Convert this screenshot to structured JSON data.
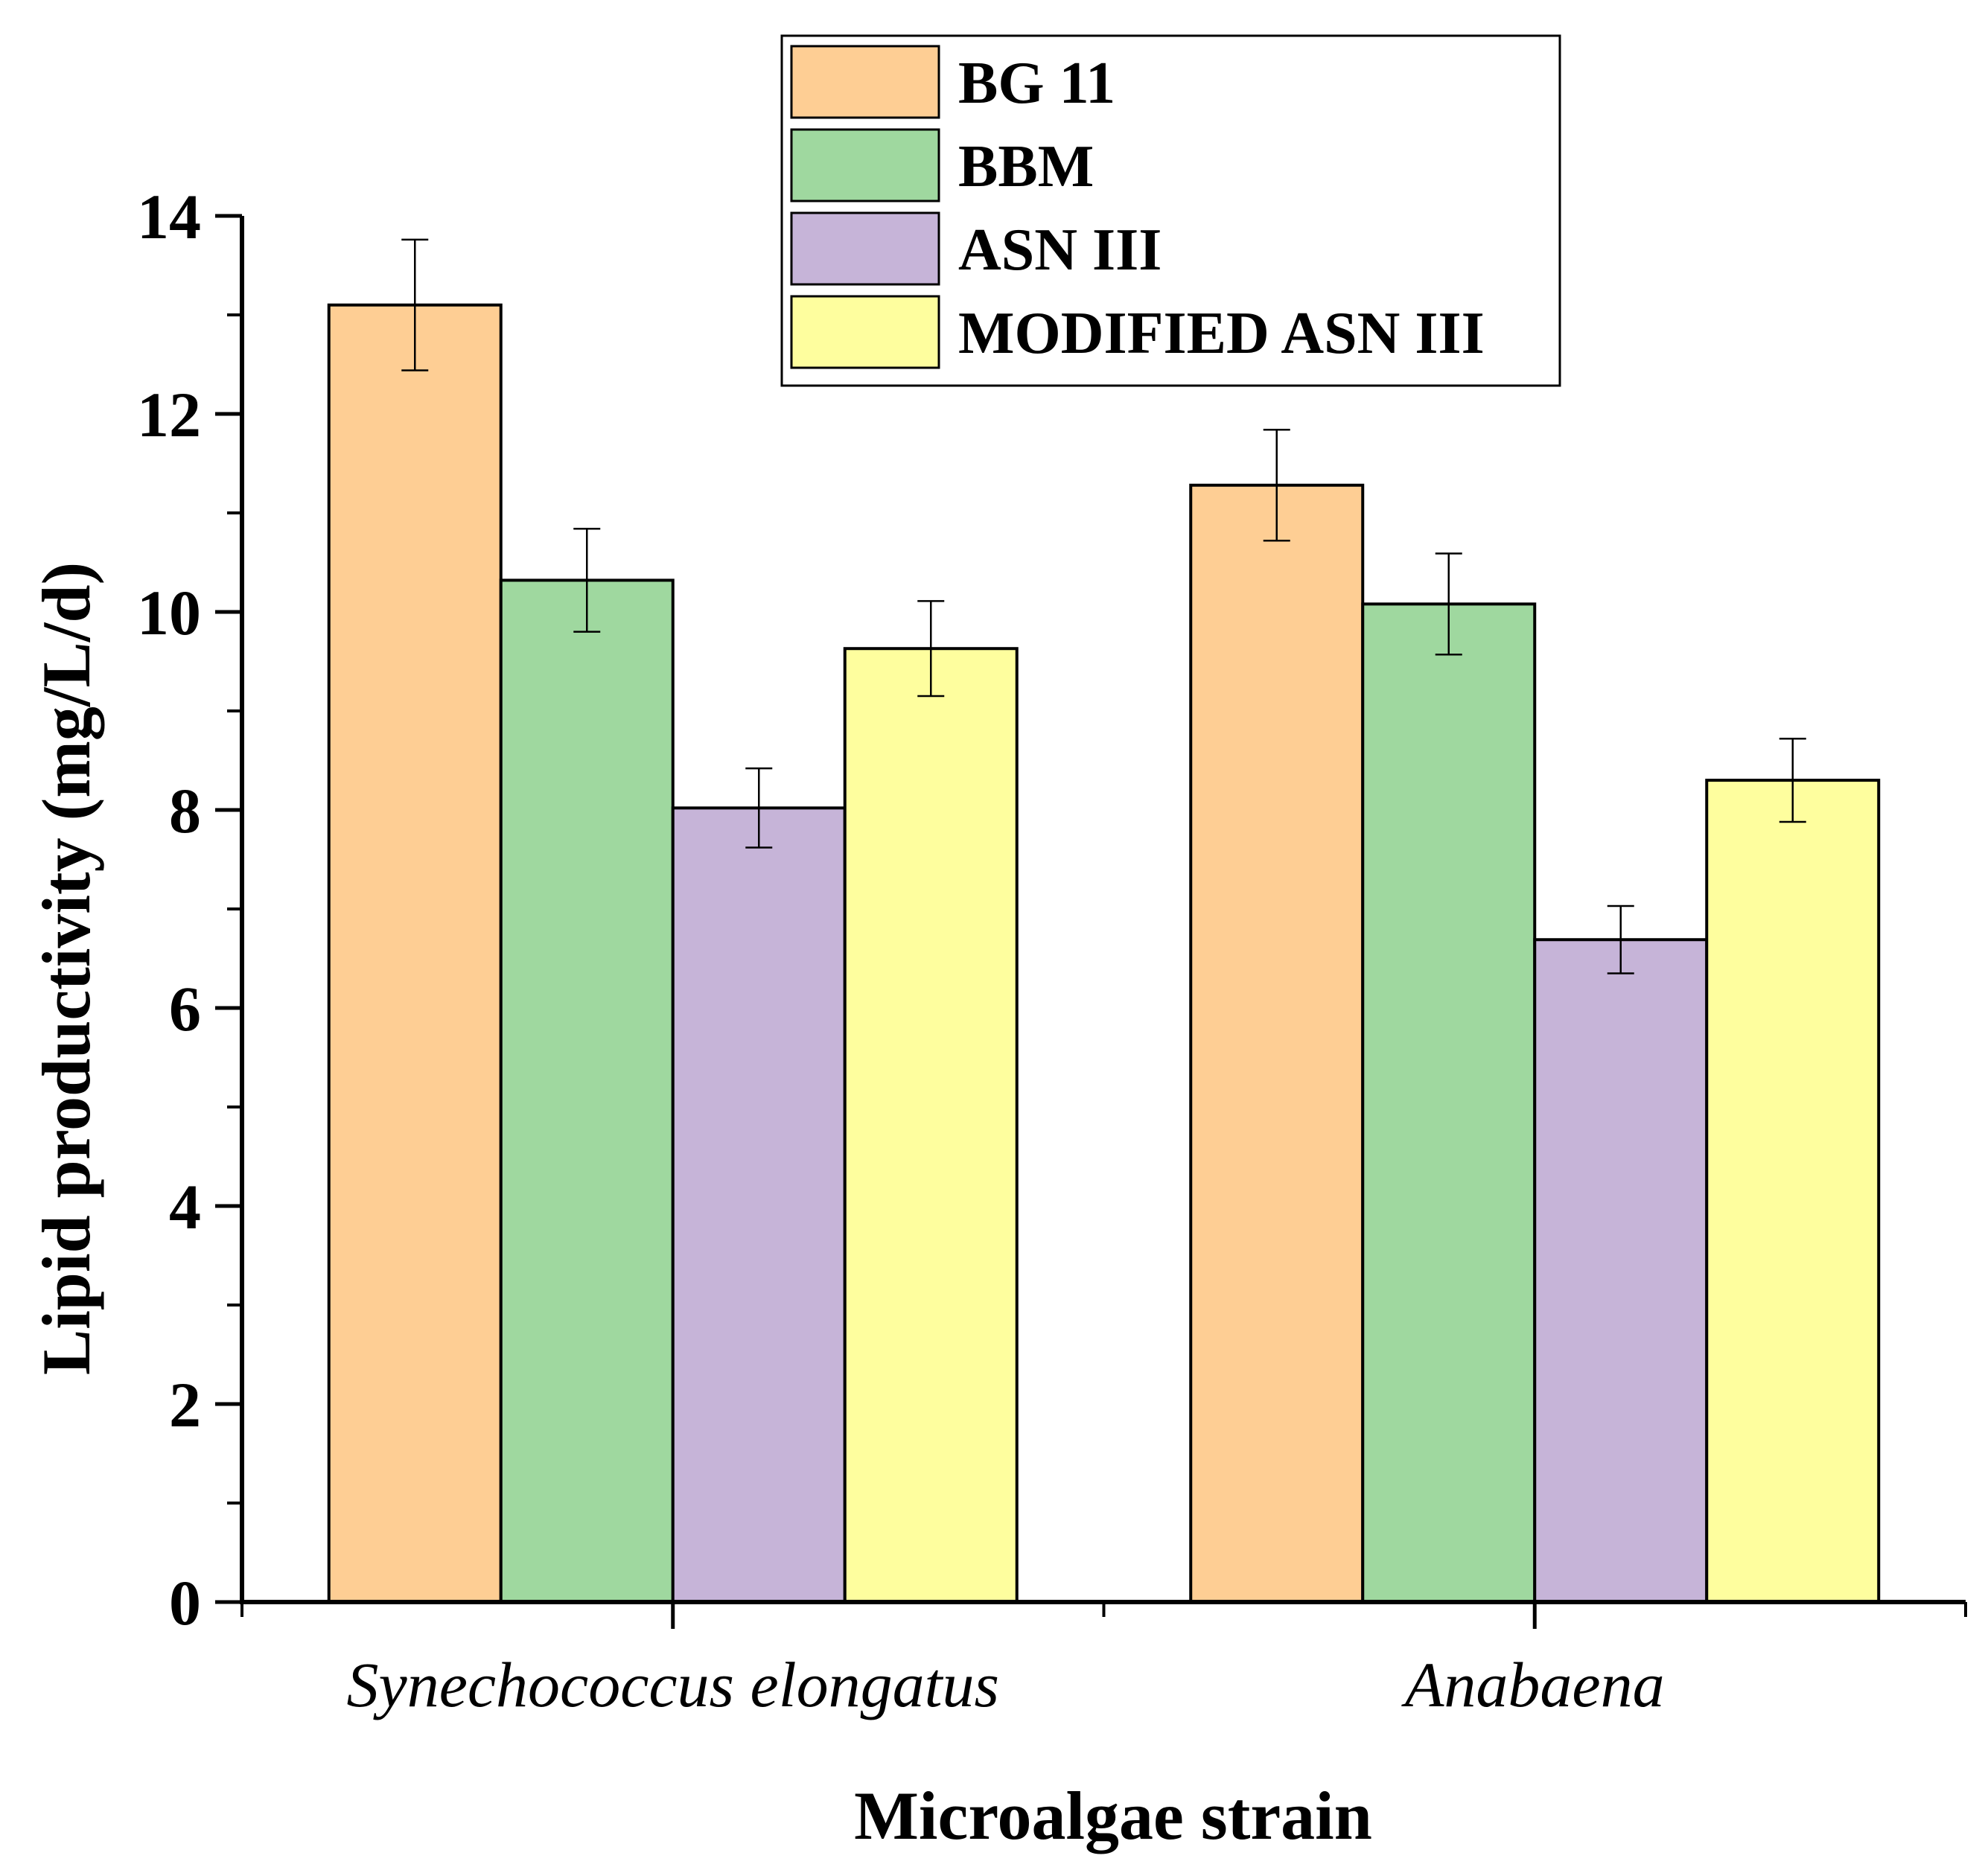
{
  "chart_data": {
    "type": "bar",
    "title": "",
    "xlabel": "Microalgae strain",
    "ylabel": "Lipid productivity (mg/L/d)",
    "ylim": [
      0,
      14
    ],
    "yticks": [
      "0",
      "2",
      "4",
      "6",
      "8",
      "10",
      "12",
      "14"
    ],
    "categories": [
      "Synechococcus elongatus",
      "Anabaena"
    ],
    "series": [
      {
        "name": "BG 11",
        "color": "#FECE94",
        "values": [
          13.1,
          11.28
        ],
        "errors": [
          0.66,
          0.56
        ]
      },
      {
        "name": "BBM",
        "color": "#9FD89F",
        "values": [
          10.32,
          10.08
        ],
        "errors": [
          0.52,
          0.51
        ]
      },
      {
        "name": "ASN III",
        "color": "#C6B4D8",
        "values": [
          8.02,
          6.69
        ],
        "errors": [
          0.4,
          0.34
        ]
      },
      {
        "name": "MODIFIED ASN III",
        "color": "#FEFE9E",
        "values": [
          9.63,
          8.3
        ],
        "errors": [
          0.48,
          0.42
        ]
      }
    ],
    "legend_position": "top-right",
    "grid": false
  }
}
